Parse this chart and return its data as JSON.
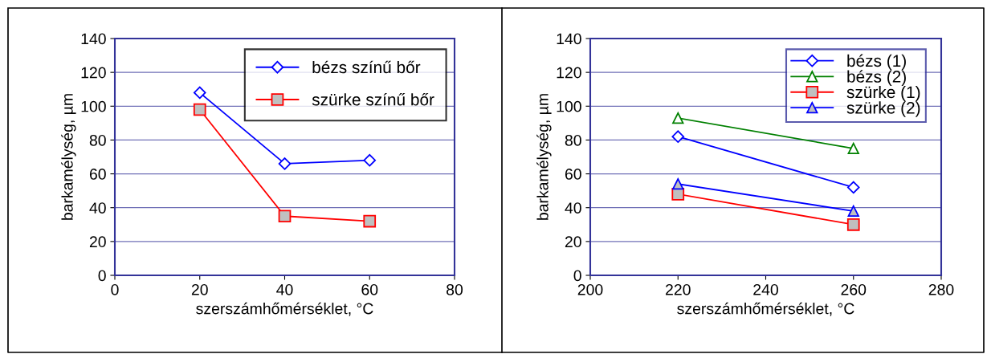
{
  "chart_data": [
    {
      "type": "line",
      "xlabel": "szerszámhőmérséklet, °C",
      "ylabel": "barkamélység, µm",
      "x": [
        20,
        40,
        60
      ],
      "xlim": [
        0,
        80
      ],
      "xticks": [
        0,
        20,
        40,
        60,
        80
      ],
      "ylim": [
        0,
        140
      ],
      "yticks": [
        0,
        20,
        40,
        60,
        80,
        100,
        120,
        140
      ],
      "grid": "y",
      "legend": "top right",
      "series": [
        {
          "name": "bézs színű bőr",
          "color": "#0000ff",
          "marker": "diamond",
          "values": [
            108,
            66,
            68
          ]
        },
        {
          "name": "szürke színű bőr",
          "color": "#ff0000",
          "marker": "square",
          "values": [
            98,
            35,
            32
          ]
        }
      ]
    },
    {
      "type": "line",
      "xlabel": "szerszámhőmérséklet, °C",
      "ylabel": "barkamélység, µm",
      "x": [
        220,
        260
      ],
      "xlim": [
        200,
        280
      ],
      "xticks": [
        200,
        220,
        240,
        260,
        280
      ],
      "ylim": [
        0,
        140
      ],
      "yticks": [
        0,
        20,
        40,
        60,
        80,
        100,
        120,
        140
      ],
      "grid": "y",
      "legend": "top right",
      "series": [
        {
          "name": "bézs (1)",
          "color": "#0000ff",
          "marker": "diamond",
          "values": [
            82,
            52
          ]
        },
        {
          "name": "bézs (2)",
          "color": "#008000",
          "marker": "triangle",
          "values": [
            93,
            75
          ]
        },
        {
          "name": "szürke (1)",
          "color": "#ff0000",
          "marker": "square",
          "values": [
            48,
            30
          ]
        },
        {
          "name": "szürke (2)",
          "color": "#0000ff",
          "marker": "triangle",
          "values": [
            54,
            38
          ]
        }
      ]
    }
  ]
}
